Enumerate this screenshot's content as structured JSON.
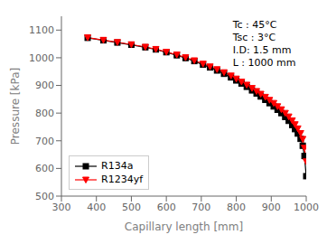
{
  "chart_data": {
    "type": "line",
    "xlabel": "Capillary length [mm]",
    "ylabel": "Pressure [kPa]",
    "xlim": [
      300,
      1000
    ],
    "ylim": [
      500,
      1150
    ],
    "xticks": [
      300,
      400,
      500,
      600,
      700,
      800,
      900,
      1000
    ],
    "yticks": [
      500,
      600,
      700,
      800,
      900,
      1000,
      1100
    ],
    "annotation": "Tc : 45°C\nTsc : 3°C\nI.D: 1.5 mm\nL : 1000 mm",
    "grid": false,
    "legend": "lower left",
    "x": [
      375,
      420,
      460,
      500,
      540,
      570,
      600,
      630,
      655,
      680,
      705,
      725,
      745,
      765,
      785,
      800,
      815,
      830,
      845,
      858,
      870,
      883,
      895,
      907,
      918,
      929,
      940,
      950,
      960,
      968,
      976,
      984,
      990,
      995,
      1000
    ],
    "series": [
      {
        "name": "R134a",
        "color": "black",
        "marker": "square",
        "values": [
          1072,
          1063,
          1055,
          1047,
          1038,
          1030,
          1020,
          1009,
          999,
          988,
          975,
          965,
          954,
          942,
          929,
          918,
          907,
          895,
          882,
          871,
          860,
          848,
          836,
          824,
          812,
          800,
          786,
          772,
          757,
          742,
          726,
          707,
          682,
          645,
          572
        ]
      },
      {
        "name": "R1234yf",
        "color": "red",
        "marker": "triangle-down",
        "values": [
          1073,
          1064,
          1056,
          1048,
          1039,
          1031,
          1021,
          1011,
          1001,
          990,
          978,
          968,
          958,
          947,
          935,
          924,
          913,
          902,
          890,
          879,
          869,
          858,
          847,
          836,
          824,
          813,
          800,
          787,
          773,
          759,
          744,
          727,
          706,
          674,
          625
        ]
      }
    ]
  }
}
